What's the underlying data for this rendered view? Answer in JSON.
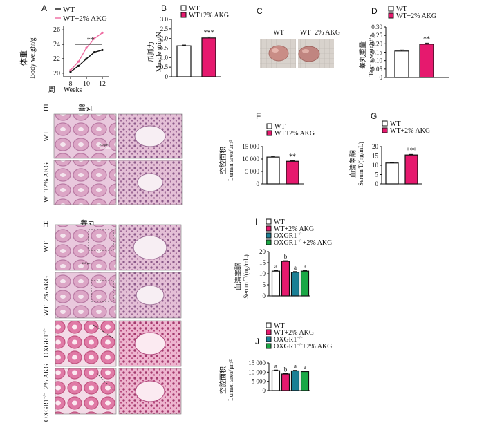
{
  "panel_letters": {
    "A": "A",
    "B": "B",
    "C": "C",
    "D": "D",
    "E": "E",
    "F": "F",
    "G": "G",
    "H": "H",
    "I": "I",
    "J": "J"
  },
  "colors": {
    "wt": "#ffffff",
    "akg": "#e6196e",
    "oxgr1": "#1a7f95",
    "oxgr1_akg": "#1aa845",
    "wt_line": "#111111",
    "akg_line": "#ee6aa0"
  },
  "legend": {
    "wt": "WT",
    "akg": "WT+2% AKG",
    "oxgr1": "OXGR1",
    "oxgr1_akg": "OXGR1",
    "akg_suffix": "+2% AKG",
    "sup": "−/−"
  },
  "photo": {
    "wt": "WT",
    "akg": "WT+2% AKG"
  },
  "histology": {
    "title_e": "睾丸",
    "title_h": "睾丸",
    "row_wt": "WT",
    "row_akg": "WT+2% AKG",
    "row_oxgr1": "OXGR1",
    "row_oxgr1_akg": "OXGR1",
    "akg_suffix": "+2% AKG",
    "sup": "−/−",
    "scale_e": "100 μm",
    "scale_h": "100 μm"
  },
  "chart_data": [
    {
      "panel": "A",
      "type": "line",
      "xlabel_cn": "周",
      "xlabel_en": "Weeks",
      "ylabel_cn": "体重",
      "ylabel_en": "Body weight/g",
      "xticks": [
        "8",
        "10",
        "12"
      ],
      "yticks": [
        "20",
        "22",
        "24",
        "26"
      ],
      "ylim": [
        19.5,
        26.5
      ],
      "x": [
        8,
        9,
        10,
        11,
        12
      ],
      "series": [
        {
          "name": "WT",
          "values": [
            20.2,
            21.0,
            22.0,
            22.9,
            23.2
          ]
        },
        {
          "name": "WT+2% AKG",
          "values": [
            20.4,
            21.6,
            23.5,
            24.8,
            25.6
          ]
        }
      ],
      "annotation": "**"
    },
    {
      "panel": "B",
      "type": "bar",
      "ylabel_cn": "爪抓力",
      "ylabel_en": "Muscle grip/N",
      "ylim": [
        0,
        3.0
      ],
      "yticks": [
        "0",
        "0.5",
        "1.0",
        "1.5",
        "2.0",
        "2.5",
        "3.0"
      ],
      "categories": [
        "WT",
        "WT+2% AKG"
      ],
      "values": [
        1.62,
        2.03
      ],
      "errors": [
        0.04,
        0.05
      ],
      "annotations": [
        "",
        "***"
      ]
    },
    {
      "panel": "D",
      "type": "bar",
      "ylabel_cn": "睾丸重量",
      "ylabel_en": "Testis weight/g",
      "ylim": [
        0,
        0.3
      ],
      "yticks": [
        "0",
        "0.05",
        "0.10",
        "0.15",
        "0.20",
        "0.25",
        "0.30"
      ],
      "categories": [
        "WT",
        "WT+2% AKG"
      ],
      "values": [
        0.157,
        0.198
      ],
      "errors": [
        0.006,
        0.006
      ],
      "annotations": [
        "",
        "**"
      ]
    },
    {
      "panel": "F",
      "type": "bar",
      "ylabel_cn": "空腔面积",
      "ylabel_en": "Lumen area/μm²",
      "ylim": [
        0,
        15000
      ],
      "yticks": [
        "0",
        "5 000",
        "10 000",
        "15 000"
      ],
      "categories": [
        "WT",
        "WT+2% AKG"
      ],
      "values": [
        10800,
        9100
      ],
      "errors": [
        350,
        250
      ],
      "annotations": [
        "",
        "**"
      ]
    },
    {
      "panel": "G",
      "type": "bar",
      "ylabel_cn": "血清睾酮",
      "ylabel_en": "Serum T/(ng/mL)",
      "ylim": [
        0,
        20
      ],
      "yticks": [
        "0",
        "5",
        "10",
        "15",
        "20"
      ],
      "categories": [
        "WT",
        "WT+2% AKG"
      ],
      "values": [
        11.2,
        15.5
      ],
      "errors": [
        0.2,
        0.3
      ],
      "annotations": [
        "",
        "***"
      ]
    },
    {
      "panel": "I",
      "type": "bar",
      "ylabel_cn": "血清睾酮",
      "ylabel_en": "Serum T/(ng/mL)",
      "ylim": [
        0,
        20
      ],
      "yticks": [
        "0",
        "5",
        "10",
        "15",
        "20"
      ],
      "categories": [
        "WT",
        "WT+2% AKG",
        "OXGR1−/−",
        "OXGR1−/−+2% AKG"
      ],
      "values": [
        11.2,
        15.6,
        10.7,
        11.2
      ],
      "errors": [
        0.3,
        0.3,
        0.3,
        0.3
      ],
      "annotations": [
        "a",
        "b",
        "a",
        "a"
      ]
    },
    {
      "panel": "J",
      "type": "bar",
      "ylabel_cn": "空腔面积",
      "ylabel_en": "Lumen area/μm²",
      "ylim": [
        0,
        15000
      ],
      "yticks": [
        "0",
        "5 000",
        "10 000",
        "15 000"
      ],
      "categories": [
        "WT",
        "WT+2% AKG",
        "OXGR1−/−",
        "OXGR1−/−+2% AKG"
      ],
      "values": [
        10800,
        9000,
        10700,
        10300
      ],
      "errors": [
        350,
        250,
        300,
        250
      ],
      "annotations": [
        "a",
        "b",
        "a",
        "a"
      ]
    }
  ]
}
